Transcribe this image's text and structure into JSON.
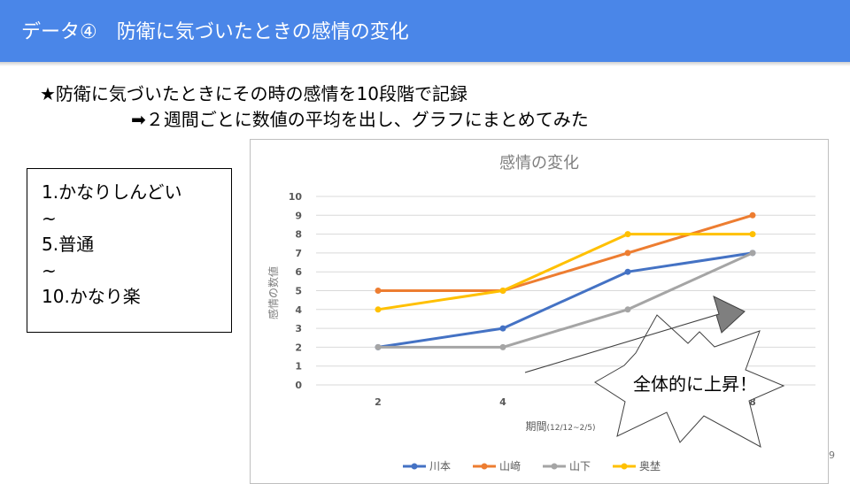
{
  "header": {
    "title": "データ④　防衛に気づいたときの感情の変化"
  },
  "text": {
    "line1": "★防衛に気づいたときにその時の感情を10段階で記録",
    "line2": "➡２週間ごとに数値の平均を出し、グラフにまとめてみた"
  },
  "scale": {
    "items": [
      "1.かなりしんどい",
      "~",
      "5.普通",
      "~",
      "10.かなり楽"
    ]
  },
  "callout": {
    "text": "全体的に上昇！"
  },
  "page_number": "9",
  "chart_data": {
    "type": "line",
    "title": "感情の変化",
    "xlabel": "期間",
    "xlabel_note": "(12/12~2/5)",
    "ylabel": "感情の数値",
    "x": [
      2,
      4,
      6,
      8
    ],
    "ylim": [
      0,
      10
    ],
    "yticks": [
      0,
      1,
      2,
      3,
      4,
      5,
      6,
      7,
      8,
      9,
      10
    ],
    "grid": true,
    "legend": "bottom",
    "series": [
      {
        "name": "川本",
        "color": "#4472c4",
        "values": [
          2,
          3,
          6,
          7
        ]
      },
      {
        "name": "山﨑",
        "color": "#ed7d31",
        "values": [
          5,
          5,
          7,
          9
        ]
      },
      {
        "name": "山下",
        "color": "#a5a5a5",
        "values": [
          2,
          2,
          4,
          7
        ]
      },
      {
        "name": "奥埜",
        "color": "#ffc000",
        "values": [
          4,
          5,
          8,
          8
        ]
      }
    ]
  }
}
